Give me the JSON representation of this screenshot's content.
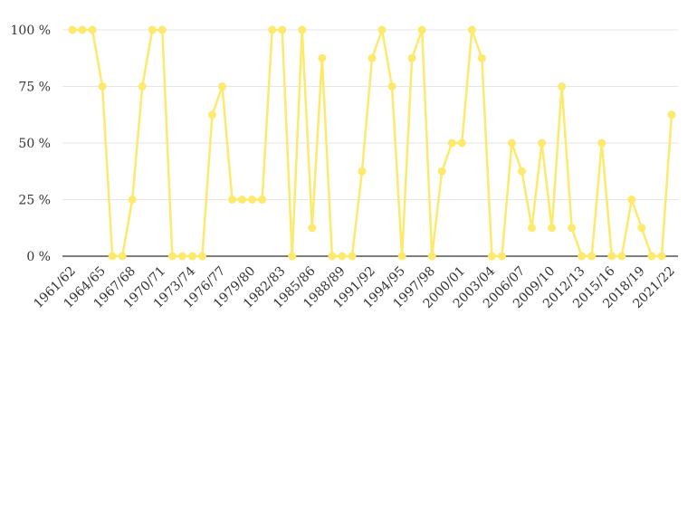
{
  "chart_data": {
    "type": "line",
    "title": "",
    "xlabel": "",
    "ylabel": "",
    "ylim": [
      0,
      100
    ],
    "y_ticks": [
      0,
      25,
      50,
      75,
      100
    ],
    "y_tick_labels": [
      "0 %",
      "25 %",
      "50 %",
      "75 %",
      "100 %"
    ],
    "grid": true,
    "legend": "none",
    "colors": {
      "series": "#fde96b",
      "grid": "#e6e6e6",
      "baseline": "#333333"
    },
    "x": [
      "1961/62",
      "1962/63",
      "1963/64",
      "1964/65",
      "1965/66",
      "1966/67",
      "1967/68",
      "1968/69",
      "1969/70",
      "1970/71",
      "1971/72",
      "1972/73",
      "1973/74",
      "1974/75",
      "1975/76",
      "1976/77",
      "1977/78",
      "1978/79",
      "1979/80",
      "1980/81",
      "1981/82",
      "1982/83",
      "1983/84",
      "1984/85",
      "1985/86",
      "1986/87",
      "1987/88",
      "1988/89",
      "1989/90",
      "1990/91",
      "1991/92",
      "1992/93",
      "1993/94",
      "1994/95",
      "1995/96",
      "1996/97",
      "1997/98",
      "1998/99",
      "1999/00",
      "2000/01",
      "2001/02",
      "2002/03",
      "2003/04",
      "2004/05",
      "2005/06",
      "2006/07",
      "2007/08",
      "2008/09",
      "2009/10",
      "2010/11",
      "2011/12",
      "2012/13",
      "2013/14",
      "2014/15",
      "2015/16",
      "2016/17",
      "2017/18",
      "2018/19",
      "2019/20",
      "2020/21",
      "2021/22"
    ],
    "x_tick_labels": [
      "1961/62",
      "1964/65",
      "1967/68",
      "1970/71",
      "1973/74",
      "1976/77",
      "1979/80",
      "1982/83",
      "1985/86",
      "1988/89",
      "1991/92",
      "1994/95",
      "1997/98",
      "2000/01",
      "2003/04",
      "2006/07",
      "2009/10",
      "2012/13",
      "2015/16",
      "2018/19",
      "2021/22"
    ],
    "series": [
      {
        "values": [
          100,
          100,
          100,
          75,
          0,
          0,
          25,
          75,
          100,
          100,
          0,
          0,
          0,
          0,
          62.5,
          75,
          25,
          25,
          25,
          25,
          100,
          100,
          0,
          100,
          12.5,
          87.5,
          0,
          0,
          0,
          37.5,
          87.5,
          100,
          75,
          0,
          87.5,
          100,
          0,
          37.5,
          50,
          50,
          100,
          87.5,
          0,
          0,
          50,
          37.5,
          12.5,
          50,
          12.5,
          75,
          12.5,
          0,
          0,
          50,
          0,
          0,
          25,
          12.5,
          0,
          0,
          62.5
        ]
      }
    ]
  }
}
